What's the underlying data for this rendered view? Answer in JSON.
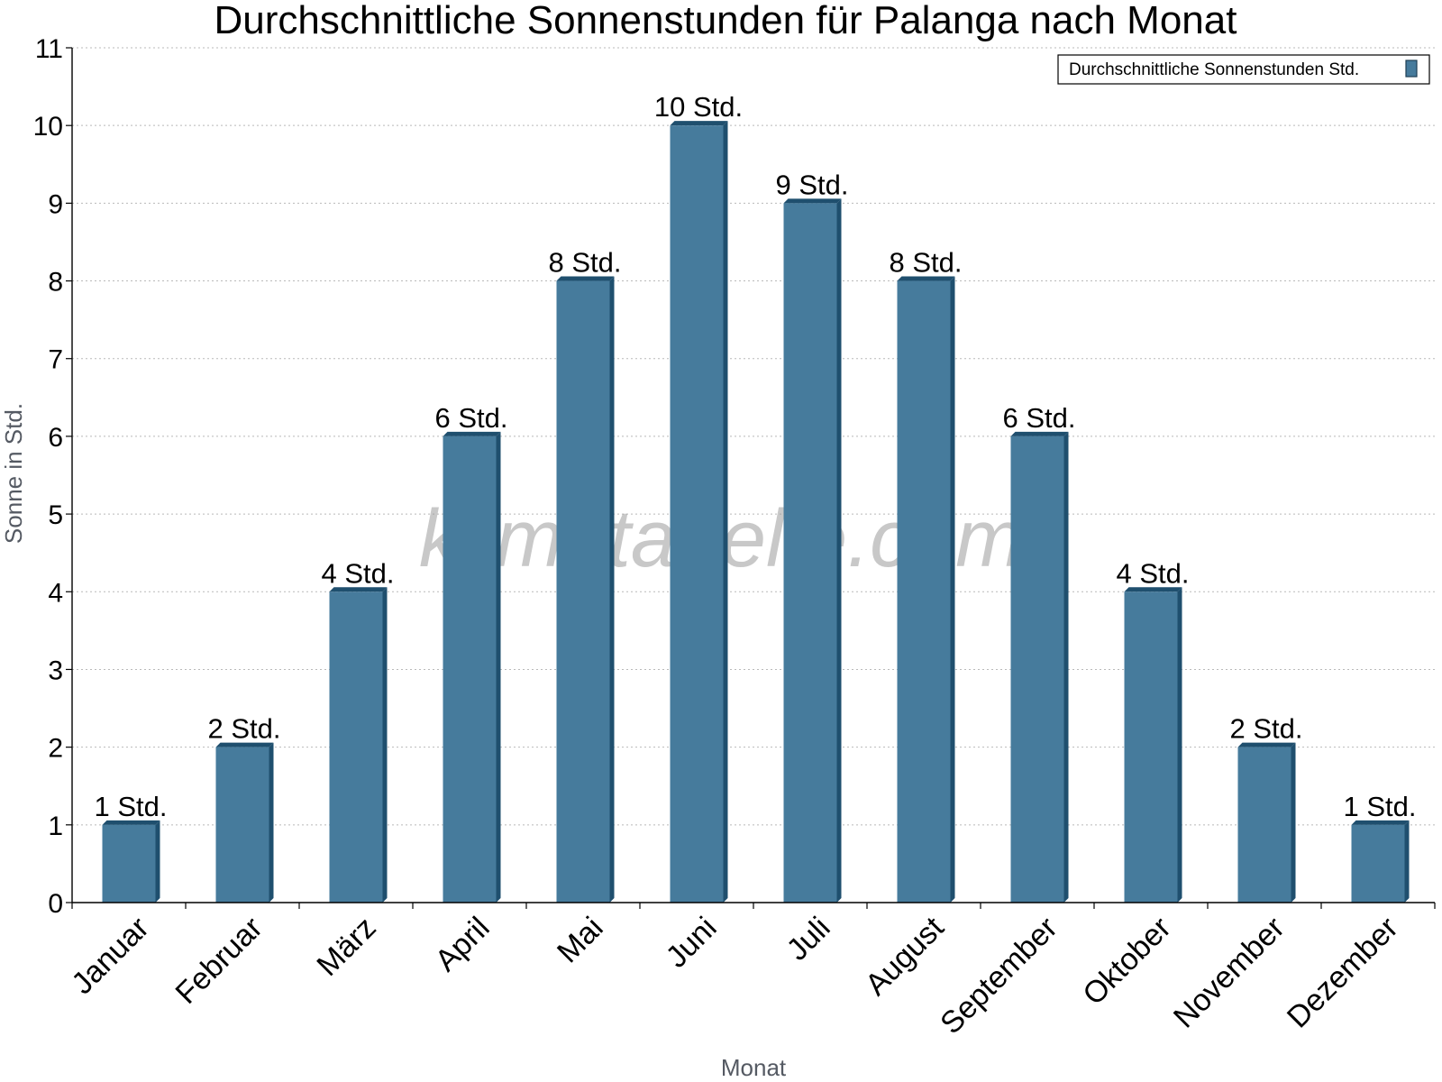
{
  "chart_data": {
    "type": "bar",
    "title": "Durchschnittliche Sonnenstunden für Palanga nach Monat",
    "xlabel": "Monat",
    "ylabel": "Sonne in Std.",
    "categories": [
      "Januar",
      "Februar",
      "März",
      "April",
      "Mai",
      "Juni",
      "Juli",
      "August",
      "September",
      "Oktober",
      "November",
      "Dezember"
    ],
    "series": [
      {
        "name": "Durchschnittliche Sonnenstunden Std.",
        "values": [
          1,
          2,
          4,
          6,
          8,
          10,
          9,
          8,
          6,
          4,
          2,
          1
        ],
        "data_labels": [
          "1 Std.",
          "2 Std.",
          "4 Std.",
          "6 Std.",
          "8 Std.",
          "10 Std.",
          "9 Std.",
          "8 Std.",
          "6 Std.",
          "4 Std.",
          "2 Std.",
          "1 Std."
        ],
        "color": "#467b9c",
        "shade_color": "#1f4f6e"
      }
    ],
    "ylim": [
      0,
      11
    ],
    "yticks": [
      0,
      1,
      2,
      3,
      4,
      5,
      6,
      7,
      8,
      9,
      10,
      11
    ],
    "grid": "horizontal dotted",
    "legend": "top-right",
    "watermark": "klimatabelle.com"
  }
}
